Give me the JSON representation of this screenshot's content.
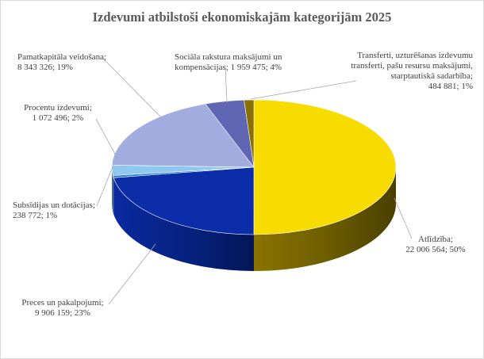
{
  "chart_data": {
    "type": "pie",
    "title": "Izdevumi atbilstoši ekonomiskajām kategorijām 2025",
    "slices": [
      {
        "label": "Atlīdzība",
        "value": 22006564,
        "percent": "50%",
        "value_text": "22 006 564",
        "color": "#f8dc00"
      },
      {
        "label": "Preces un pakalpojumi",
        "value": 9906159,
        "percent": "23%",
        "value_text": "9 906 159",
        "color": "#0b2ea8"
      },
      {
        "label": "Subsīdijas un dotācijas",
        "value": 238772,
        "percent": "1%",
        "value_text": "238 772",
        "color": "#2f7fd0"
      },
      {
        "label": "Procentu izdevumi",
        "value": 1072496,
        "percent": "2%",
        "value_text": "1 072 496",
        "color": "#8fc8ef"
      },
      {
        "label": "Pamatkapitāla veidošana",
        "value": 8343326,
        "percent": "19%",
        "value_text": "8 343 326",
        "color": "#a2acde"
      },
      {
        "label": "Sociāla rakstura maksājumi un kompensācijas",
        "value": 1959475,
        "percent": "4%",
        "value_text": "1 959 475",
        "color": "#5f67b4"
      },
      {
        "label": "Transferti, uzturēšanas izdevumu transferti, pašu resursu maksājumi, starptautiskā sadarbība",
        "value": 484881,
        "percent": "1%",
        "value_text": "484 881",
        "color": "#8a7000"
      }
    ]
  },
  "labels": {
    "atlidziba": {
      "l1": "Atlīdzība;",
      "l2": "22 006 564; 50%"
    },
    "preces": {
      "l1": "Preces un pakalpojumi;",
      "l2": "9 906 159; 23%"
    },
    "subsidijas": {
      "l1": "Subsīdijas un dotācijas;",
      "l2": "238 772; 1%"
    },
    "procentu": {
      "l1": "Procentu izdevumi;",
      "l2": "1 072 496; 2%"
    },
    "pamatkapitala": {
      "l1": "Pamatkapitāla veidošana;",
      "l2": "8 343 326; 19%"
    },
    "sociala": {
      "l1": "Sociāla rakstura maksājumi un",
      "l2": "kompensācijas; 1 959 475; 4%"
    },
    "transferti": {
      "l1": "Transferti, uzturēšanas izdevumu",
      "l2": "transferti, pašu resursu maksājumi,",
      "l3": "starptautiskā sadarbība;",
      "l4": "484 881; 1%"
    }
  }
}
